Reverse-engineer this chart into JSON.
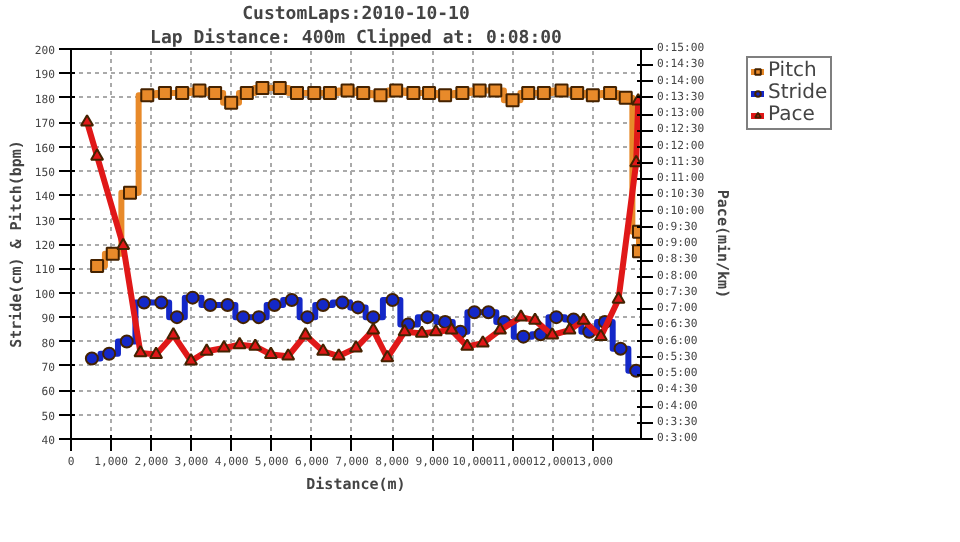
{
  "chart_data": {
    "type": "line",
    "title": "CustomLaps:2010-10-10",
    "subtitle": "Lap Distance: 400m Clipped at: 0:08:00",
    "xlabel": "Distance(m)",
    "ylabel": "Stride(cm) & Pitch(bpm)",
    "y2label": "Pace(min/km)",
    "xlim": [
      0,
      14200
    ],
    "xticks": [
      0,
      {
        "value": 1000,
        "label": "1,000"
      },
      {
        "value": 2000,
        "label": "2,000"
      },
      {
        "value": 3000,
        "label": "3,000"
      },
      {
        "value": 4000,
        "label": "4,000"
      },
      {
        "value": 5000,
        "label": "5,000"
      },
      {
        "value": 6000,
        "label": "6,000"
      },
      {
        "value": 7000,
        "label": "7,000"
      },
      {
        "value": 8000,
        "label": "8,000"
      },
      {
        "value": 9000,
        "label": "9,000"
      },
      {
        "value": 10000,
        "label": "10,000"
      },
      {
        "value": 11000,
        "label": "11,000"
      },
      {
        "value": 12000,
        "label": "12,000"
      },
      {
        "value": 13000,
        "label": "13,000"
      }
    ],
    "ylim": [
      40,
      200
    ],
    "yticks": [
      40,
      50,
      60,
      70,
      80,
      90,
      100,
      110,
      120,
      130,
      140,
      150,
      160,
      170,
      180,
      190,
      200
    ],
    "y2lim": [
      3,
      15
    ],
    "y2ticks": [
      {
        "value": 3,
        "label": "0:3:00"
      },
      {
        "value": 3.5,
        "label": "0:3:30"
      },
      {
        "value": 4,
        "label": "0:4:00"
      },
      {
        "value": 4.5,
        "label": "0:4:30"
      },
      {
        "value": 5,
        "label": "0:5:00"
      },
      {
        "value": 5.5,
        "label": "0:5:30"
      },
      {
        "value": 6,
        "label": "0:6:00"
      },
      {
        "value": 6.5,
        "label": "0:6:30"
      },
      {
        "value": 7,
        "label": "0:7:00"
      },
      {
        "value": 7.5,
        "label": "0:7:30"
      },
      {
        "value": 8,
        "label": "0:8:00"
      },
      {
        "value": 8.5,
        "label": "0:8:30"
      },
      {
        "value": 9,
        "label": "0:9:00"
      },
      {
        "value": 9.5,
        "label": "0:9:30"
      },
      {
        "value": 10,
        "label": "0:10:00"
      },
      {
        "value": 10.5,
        "label": "0:10:30"
      },
      {
        "value": 11,
        "label": "0:11:00"
      },
      {
        "value": 11.5,
        "label": "0:11:30"
      },
      {
        "value": 12,
        "label": "0:12:00"
      },
      {
        "value": 12.5,
        "label": "0:12:30"
      },
      {
        "value": 13,
        "label": "0:13:00"
      },
      {
        "value": 13.5,
        "label": "0:13:30"
      },
      {
        "value": 14,
        "label": "0:14:00"
      },
      {
        "value": 14.5,
        "label": "0:14:30"
      },
      {
        "value": 15,
        "label": "0:15:00"
      }
    ],
    "grid": true,
    "legend": "top right",
    "series": [
      {
        "name": "Pitch",
        "type": "step",
        "marker": "square",
        "color": "#e88a2a",
        "x": [
          650,
          1040,
          1470,
          1900,
          2340,
          2770,
          3200,
          3590,
          3990,
          4380,
          4770,
          5200,
          5630,
          6060,
          6450,
          6890,
          7280,
          7710,
          8100,
          8530,
          8920,
          9320,
          9750,
          10180,
          10570,
          11000,
          11390,
          11780,
          12220,
          12610,
          13000,
          13430,
          13820,
          14150,
          14150
        ],
        "values": [
          111,
          116,
          141,
          181,
          182,
          182,
          183,
          182,
          178,
          182,
          184,
          184,
          182,
          182,
          182,
          183,
          182,
          181,
          183,
          182,
          182,
          181,
          182,
          183,
          183,
          179,
          182,
          182,
          183,
          182,
          181,
          182,
          180,
          125,
          117
        ]
      },
      {
        "name": "Stride",
        "type": "step",
        "marker": "circle",
        "color": "#1428c8",
        "x": [
          520,
          950,
          1390,
          1820,
          2250,
          2640,
          3030,
          3470,
          3900,
          4290,
          4680,
          5070,
          5500,
          5890,
          6280,
          6760,
          7150,
          7530,
          8010,
          8400,
          8880,
          9320,
          9700,
          10050,
          10400,
          10790,
          11270,
          11700,
          12090,
          12520,
          12910,
          13300,
          13690,
          14080
        ],
        "values": [
          73,
          75,
          80,
          96,
          96,
          90,
          98,
          95,
          95,
          90,
          90,
          95,
          97,
          90,
          95,
          96,
          94,
          90,
          97,
          87,
          90,
          88,
          84,
          92,
          92,
          88,
          82,
          83,
          90,
          89,
          84,
          88,
          77,
          68
        ]
      },
      {
        "name": "Pace",
        "axis": "y2",
        "marker": "triangle",
        "color": "#e01818",
        "x": [
          400,
          650,
          1300,
          1730,
          2120,
          2550,
          2990,
          3380,
          3810,
          4200,
          4590,
          4980,
          5410,
          5840,
          6280,
          6670,
          7100,
          7530,
          7880,
          8310,
          8740,
          9090,
          9480,
          9870,
          10260,
          10690,
          11210,
          11560,
          11990,
          12420,
          12770,
          13200,
          13640,
          14080,
          14130
        ],
        "values": [
          12.75,
          11.7,
          8.95,
          5.65,
          5.6,
          6.2,
          5.4,
          5.7,
          5.8,
          5.9,
          5.85,
          5.6,
          5.55,
          6.2,
          5.7,
          5.55,
          5.8,
          6.35,
          5.5,
          6.3,
          6.25,
          6.3,
          6.35,
          5.85,
          5.95,
          6.35,
          6.75,
          6.65,
          6.2,
          6.35,
          6.65,
          6.15,
          7.3,
          11.5,
          13.4
        ]
      }
    ]
  }
}
